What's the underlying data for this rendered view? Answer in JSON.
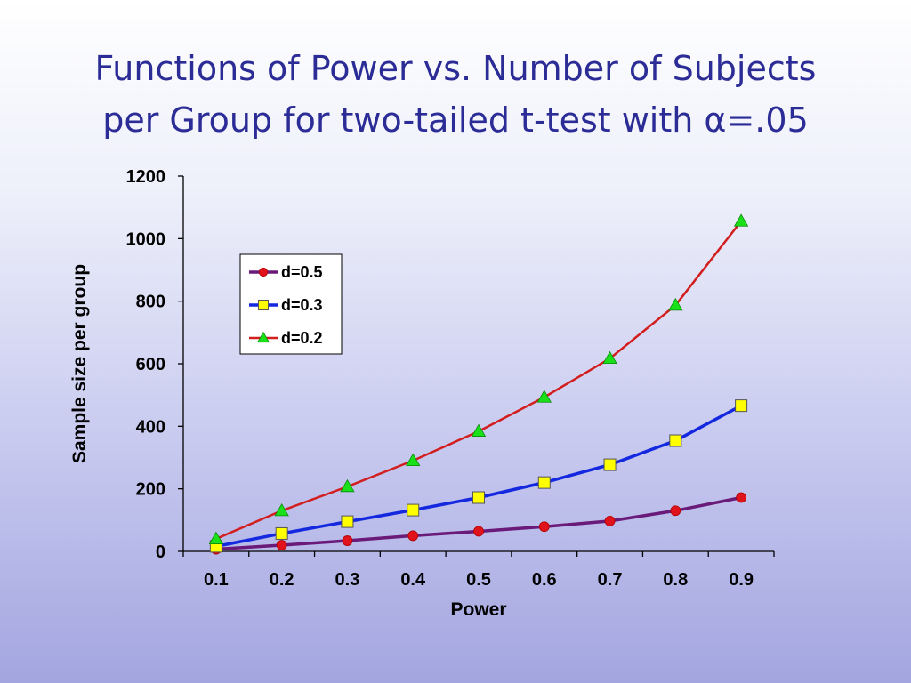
{
  "slide": {
    "title_line1": "Functions of Power vs. Number of Subjects",
    "title_line2": "per Group for two-tailed t-test with α=.05"
  },
  "chart_data": {
    "type": "line",
    "title": "",
    "xlabel": "Power",
    "ylabel": "Sample size per group",
    "x": [
      0.1,
      0.2,
      0.3,
      0.4,
      0.5,
      0.6,
      0.7,
      0.8,
      0.9
    ],
    "x_tick_labels": [
      "0.1",
      "0.2",
      "0.3",
      "0.4",
      "0.5",
      "0.6",
      "0.7",
      "0.8",
      "0.9"
    ],
    "ylim": [
      0,
      1200
    ],
    "y_ticks": [
      0,
      200,
      400,
      600,
      800,
      1000,
      1200
    ],
    "grid": false,
    "legend_position": "top-left inside plot",
    "series": [
      {
        "name": "d=0.5",
        "values": [
          7,
          20,
          34,
          50,
          64,
          79,
          97,
          130,
          172
        ],
        "color": "#6a1b7a",
        "marker": "circle",
        "marker_color": "#e0121b"
      },
      {
        "name": "d=0.3",
        "values": [
          16,
          57,
          95,
          132,
          172,
          220,
          277,
          354,
          466
        ],
        "color": "#1428e0",
        "marker": "square",
        "marker_color": "#ffff00"
      },
      {
        "name": "d=0.2",
        "values": [
          40,
          130,
          207,
          290,
          384,
          493,
          617,
          787,
          1056
        ],
        "color": "#d21e1e",
        "marker": "triangle",
        "marker_color": "#19e019"
      }
    ]
  }
}
